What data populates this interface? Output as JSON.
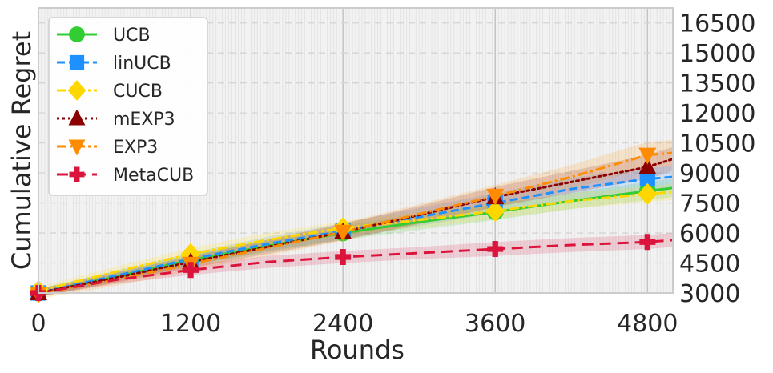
{
  "chart_data": {
    "type": "line",
    "title": "",
    "xlabel": "Rounds",
    "ylabel": "Cumulative Regret",
    "xlim": [
      0,
      5000
    ],
    "ylim": [
      3000,
      17250
    ],
    "xticks": [
      0,
      1200,
      2400,
      3600,
      4800
    ],
    "xtick_labels": [
      "0",
      "1200",
      "2400",
      "3600",
      "4800"
    ],
    "yticks": [
      3000,
      4500,
      6000,
      7500,
      9000,
      10500,
      12000,
      13500,
      15000,
      16500
    ],
    "ytick_labels": [
      "3000",
      "4500",
      "6000",
      "7500",
      "9000",
      "10500",
      "12000",
      "13500",
      "15000",
      "16500"
    ],
    "y_axis_side": "right",
    "grid": true,
    "legend_position": "upper-left",
    "x": [
      0,
      600,
      1200,
      1800,
      2400,
      3000,
      3600,
      4200,
      4800,
      5000
    ],
    "series": [
      {
        "name": "UCB",
        "color": "#32CD32",
        "linestyle": "solid",
        "marker": "circle",
        "values": [
          3000,
          3800,
          4650,
          5350,
          6000,
          6550,
          7050,
          7600,
          8100,
          8250
        ],
        "band": [
          200,
          250,
          300,
          300,
          350,
          400,
          400,
          400,
          450,
          450
        ]
      },
      {
        "name": "linUCB",
        "color": "#1E90FF",
        "linestyle": "dashed",
        "marker": "square",
        "values": [
          3000,
          3850,
          4700,
          5450,
          6100,
          6800,
          7500,
          8200,
          8700,
          8800
        ],
        "band": [
          200,
          250,
          300,
          350,
          400,
          450,
          500,
          550,
          550,
          550
        ]
      },
      {
        "name": "CUCB",
        "color": "#FFD700",
        "linestyle": "dashdot",
        "marker": "diamond",
        "values": [
          3100,
          4050,
          4950,
          5650,
          6250,
          6650,
          7100,
          7600,
          7950,
          8050
        ],
        "band": [
          200,
          250,
          300,
          350,
          350,
          400,
          400,
          400,
          400,
          400
        ]
      },
      {
        "name": "mEXP3",
        "color": "#8B0000",
        "linestyle": "dotted",
        "marker": "triangle-up",
        "values": [
          3000,
          3750,
          4550,
          5300,
          6050,
          6900,
          7800,
          8550,
          9300,
          9700
        ],
        "band": [
          200,
          250,
          300,
          350,
          400,
          450,
          500,
          550,
          600,
          600
        ]
      },
      {
        "name": "EXP3",
        "color": "#FF8C00",
        "linestyle": "dashdot",
        "marker": "triangle-down",
        "values": [
          2950,
          3650,
          4450,
          5250,
          6050,
          6950,
          7850,
          8800,
          9900,
          10000
        ],
        "band": [
          250,
          300,
          350,
          400,
          450,
          500,
          550,
          600,
          650,
          650
        ]
      },
      {
        "name": "MetaCUB",
        "color": "#DC143C",
        "linestyle": "longdash",
        "marker": "plus",
        "values": [
          3000,
          3650,
          4150,
          4550,
          4800,
          5000,
          5200,
          5400,
          5550,
          5650
        ],
        "band": [
          150,
          200,
          250,
          300,
          300,
          300,
          350,
          350,
          350,
          350
        ]
      }
    ]
  }
}
